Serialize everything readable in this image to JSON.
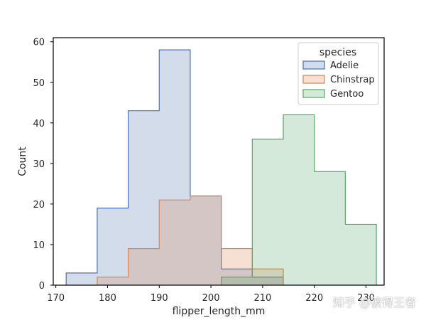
{
  "chart_data": {
    "type": "histogram",
    "element": "step",
    "xlabel": "flipper_length_mm",
    "ylabel": "Count",
    "xlim": [
      169.5,
      233.5
    ],
    "ylim": [
      0,
      61
    ],
    "xticks": [
      170,
      180,
      190,
      200,
      210,
      220,
      230
    ],
    "yticks": [
      0,
      10,
      20,
      30,
      40,
      50,
      60
    ],
    "grid": false,
    "legend": {
      "title": "species",
      "placement": "top-right"
    },
    "series": [
      {
        "name": "Adelie",
        "color": "#4c72b0",
        "edges": [
          172,
          178,
          184,
          190,
          196,
          202,
          208,
          214
        ],
        "counts": [
          3,
          19,
          43,
          58,
          22,
          4,
          2
        ]
      },
      {
        "name": "Chinstrap",
        "color": "#dd8452",
        "edges": [
          178,
          184,
          190,
          196,
          202,
          208,
          214
        ],
        "counts": [
          2,
          9,
          21,
          22,
          9,
          4
        ]
      },
      {
        "name": "Gentoo",
        "color": "#55a868",
        "edges": [
          202,
          208,
          214,
          220,
          226,
          232
        ],
        "counts": [
          2,
          36,
          42,
          28,
          15
        ]
      }
    ]
  },
  "watermark": "知乎 @彼得王者"
}
